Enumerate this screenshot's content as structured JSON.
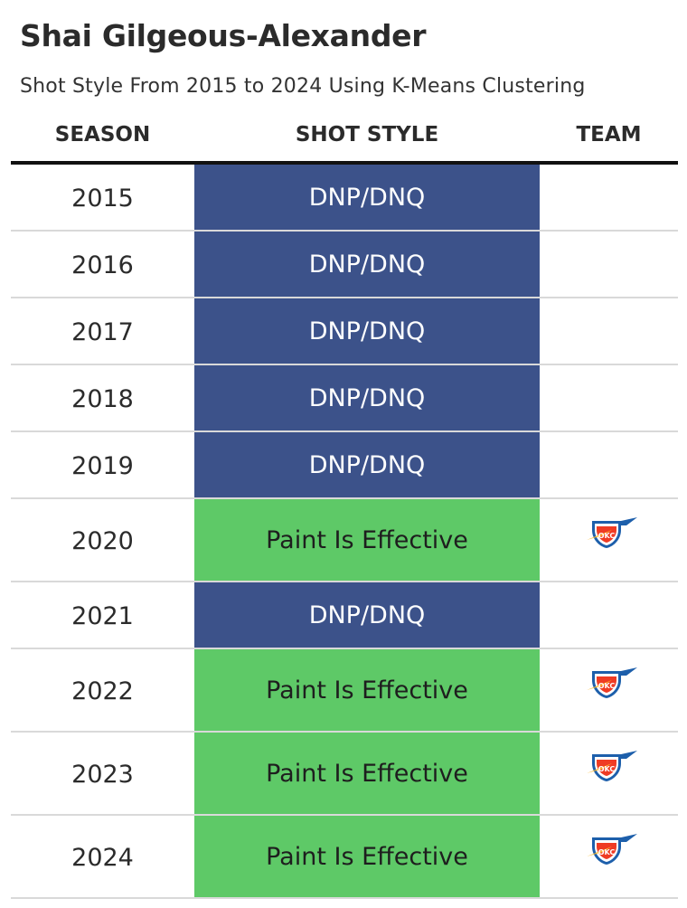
{
  "title": "Shai Gilgeous-Alexander",
  "subtitle": "Shot Style From 2015 to 2024 Using K-Means Clustering",
  "columns": {
    "season": "SEASON",
    "shot_style": "SHOT STYLE",
    "team": "TEAM"
  },
  "colors": {
    "DNP/DNQ": "#3c528a",
    "Paint Is Effective": "#5ec967",
    "dnp_text": "#ffffff",
    "paint_text": "#1e1e1e"
  },
  "chart_data": {
    "type": "table",
    "rows": [
      {
        "season": "2015",
        "shot_style": "DNP/DNQ",
        "team_logo": ""
      },
      {
        "season": "2016",
        "shot_style": "DNP/DNQ",
        "team_logo": ""
      },
      {
        "season": "2017",
        "shot_style": "DNP/DNQ",
        "team_logo": ""
      },
      {
        "season": "2018",
        "shot_style": "DNP/DNQ",
        "team_logo": ""
      },
      {
        "season": "2019",
        "shot_style": "DNP/DNQ",
        "team_logo": ""
      },
      {
        "season": "2020",
        "shot_style": "Paint Is Effective",
        "team_logo": "okc-thunder-logo",
        "logo_text": "OKC"
      },
      {
        "season": "2021",
        "shot_style": "DNP/DNQ",
        "team_logo": ""
      },
      {
        "season": "2022",
        "shot_style": "Paint Is Effective",
        "team_logo": "okc-thunder-logo",
        "logo_text": "OKC"
      },
      {
        "season": "2023",
        "shot_style": "Paint Is Effective",
        "team_logo": "okc-thunder-logo",
        "logo_text": "OKC"
      },
      {
        "season": "2024",
        "shot_style": "Paint Is Effective",
        "team_logo": "okc-thunder-logo",
        "logo_text": "OKC"
      }
    ]
  }
}
